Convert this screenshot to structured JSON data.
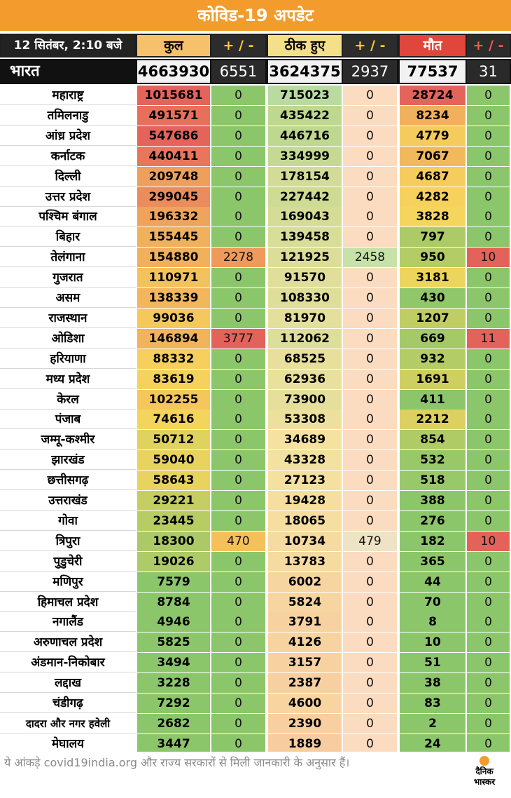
{
  "title": "कोविड-19 अपडेट",
  "header": {
    "date": "12 सितंबर, 2:10 बजे",
    "total": "कुल",
    "total_change": "+ / -",
    "recovered": "ठीक हुए",
    "recovered_change": "+ / -",
    "deaths": "मौत",
    "deaths_change": "+ / -"
  },
  "national": {
    "name": "भारत",
    "total": "4663930",
    "total_change": "6551",
    "recovered": "3624375",
    "recovered_change": "2937",
    "deaths": "77537",
    "deaths_change": "31"
  },
  "colors": {
    "banner": "#f39b2d",
    "good": "#8cc66a",
    "warn": "#f5c85a",
    "bad": "#e3625a"
  },
  "rows": [
    {
      "name": "महाराष्ट्र",
      "total": "1015681",
      "tc": "0",
      "rec": "715023",
      "rc": "0",
      "deaths": "28724",
      "dc": "0"
    },
    {
      "name": "तमिलनाडु",
      "total": "491571",
      "tc": "0",
      "rec": "435422",
      "rc": "0",
      "deaths": "8234",
      "dc": "0"
    },
    {
      "name": "आंध्र प्रदेश",
      "total": "547686",
      "tc": "0",
      "rec": "446716",
      "rc": "0",
      "deaths": "4779",
      "dc": "0"
    },
    {
      "name": "कर्नाटक",
      "total": "440411",
      "tc": "0",
      "rec": "334999",
      "rc": "0",
      "deaths": "7067",
      "dc": "0"
    },
    {
      "name": "दिल्ली",
      "total": "209748",
      "tc": "0",
      "rec": "178154",
      "rc": "0",
      "deaths": "4687",
      "dc": "0"
    },
    {
      "name": "उत्तर प्रदेश",
      "total": "299045",
      "tc": "0",
      "rec": "227442",
      "rc": "0",
      "deaths": "4282",
      "dc": "0"
    },
    {
      "name": "पश्चिम बंगाल",
      "total": "196332",
      "tc": "0",
      "rec": "169043",
      "rc": "0",
      "deaths": "3828",
      "dc": "0"
    },
    {
      "name": "बिहार",
      "total": "155445",
      "tc": "0",
      "rec": "139458",
      "rc": "0",
      "deaths": "797",
      "dc": "0"
    },
    {
      "name": "तेलंगाना",
      "total": "154880",
      "tc": "2278",
      "rec": "121925",
      "rc": "2458",
      "deaths": "950",
      "dc": "10"
    },
    {
      "name": "गुजरात",
      "total": "110971",
      "tc": "0",
      "rec": "91570",
      "rc": "0",
      "deaths": "3181",
      "dc": "0"
    },
    {
      "name": "असम",
      "total": "138339",
      "tc": "0",
      "rec": "108330",
      "rc": "0",
      "deaths": "430",
      "dc": "0"
    },
    {
      "name": "राजस्थान",
      "total": "99036",
      "tc": "0",
      "rec": "81970",
      "rc": "0",
      "deaths": "1207",
      "dc": "0"
    },
    {
      "name": "ओडिशा",
      "total": "146894",
      "tc": "3777",
      "rec": "112062",
      "rc": "0",
      "deaths": "669",
      "dc": "11"
    },
    {
      "name": "हरियाणा",
      "total": "88332",
      "tc": "0",
      "rec": "68525",
      "rc": "0",
      "deaths": "932",
      "dc": "0"
    },
    {
      "name": "मध्य प्रदेश",
      "total": "83619",
      "tc": "0",
      "rec": "62936",
      "rc": "0",
      "deaths": "1691",
      "dc": "0"
    },
    {
      "name": "केरल",
      "total": "102255",
      "tc": "0",
      "rec": "73900",
      "rc": "0",
      "deaths": "411",
      "dc": "0"
    },
    {
      "name": "पंजाब",
      "total": "74616",
      "tc": "0",
      "rec": "53308",
      "rc": "0",
      "deaths": "2212",
      "dc": "0"
    },
    {
      "name": "जम्मू-कश्मीर",
      "total": "50712",
      "tc": "0",
      "rec": "34689",
      "rc": "0",
      "deaths": "854",
      "dc": "0"
    },
    {
      "name": "झारखंड",
      "total": "59040",
      "tc": "0",
      "rec": "43328",
      "rc": "0",
      "deaths": "532",
      "dc": "0"
    },
    {
      "name": "छत्तीसगढ़",
      "total": "58643",
      "tc": "0",
      "rec": "27123",
      "rc": "0",
      "deaths": "518",
      "dc": "0"
    },
    {
      "name": "उत्तराखंड",
      "total": "29221",
      "tc": "0",
      "rec": "19428",
      "rc": "0",
      "deaths": "388",
      "dc": "0"
    },
    {
      "name": "गोवा",
      "total": "23445",
      "tc": "0",
      "rec": "18065",
      "rc": "0",
      "deaths": "276",
      "dc": "0"
    },
    {
      "name": "त्रिपुरा",
      "total": "18300",
      "tc": "470",
      "rec": "10734",
      "rc": "479",
      "deaths": "182",
      "dc": "10"
    },
    {
      "name": "पुडुचेरी",
      "total": "19026",
      "tc": "0",
      "rec": "13783",
      "rc": "0",
      "deaths": "365",
      "dc": "0"
    },
    {
      "name": "मणिपुर",
      "total": "7579",
      "tc": "0",
      "rec": "6002",
      "rc": "0",
      "deaths": "44",
      "dc": "0"
    },
    {
      "name": "हिमाचल प्रदेश",
      "total": "8784",
      "tc": "0",
      "rec": "5824",
      "rc": "0",
      "deaths": "70",
      "dc": "0"
    },
    {
      "name": "नगालैंड",
      "total": "4946",
      "tc": "0",
      "rec": "3791",
      "rc": "0",
      "deaths": "8",
      "dc": "0"
    },
    {
      "name": "अरुणाचल प्रदेश",
      "total": "5825",
      "tc": "0",
      "rec": "4126",
      "rc": "0",
      "deaths": "10",
      "dc": "0"
    },
    {
      "name": "अंडमान-निकोबार",
      "total": "3494",
      "tc": "0",
      "rec": "3157",
      "rc": "0",
      "deaths": "51",
      "dc": "0"
    },
    {
      "name": "लद्दाख",
      "total": "3228",
      "tc": "0",
      "rec": "2387",
      "rc": "0",
      "deaths": "38",
      "dc": "0"
    },
    {
      "name": "चंडीगढ़",
      "total": "7292",
      "tc": "0",
      "rec": "4600",
      "rc": "0",
      "deaths": "83",
      "dc": "0"
    },
    {
      "name": "दादरा और नगर हवेली",
      "total": "2682",
      "tc": "0",
      "rec": "2390",
      "rc": "0",
      "deaths": "2",
      "dc": "0"
    },
    {
      "name": "मेघालय",
      "total": "3447",
      "tc": "0",
      "rec": "1889",
      "rc": "0",
      "deaths": "24",
      "dc": "0"
    }
  ],
  "footer": {
    "note": "ये आंकड़े covid19india.org और राज्य सरकारों से मिली जानकारी के अनुसार हैं।",
    "logo_top": "दैनिक",
    "logo_bottom": "भास्कर"
  }
}
